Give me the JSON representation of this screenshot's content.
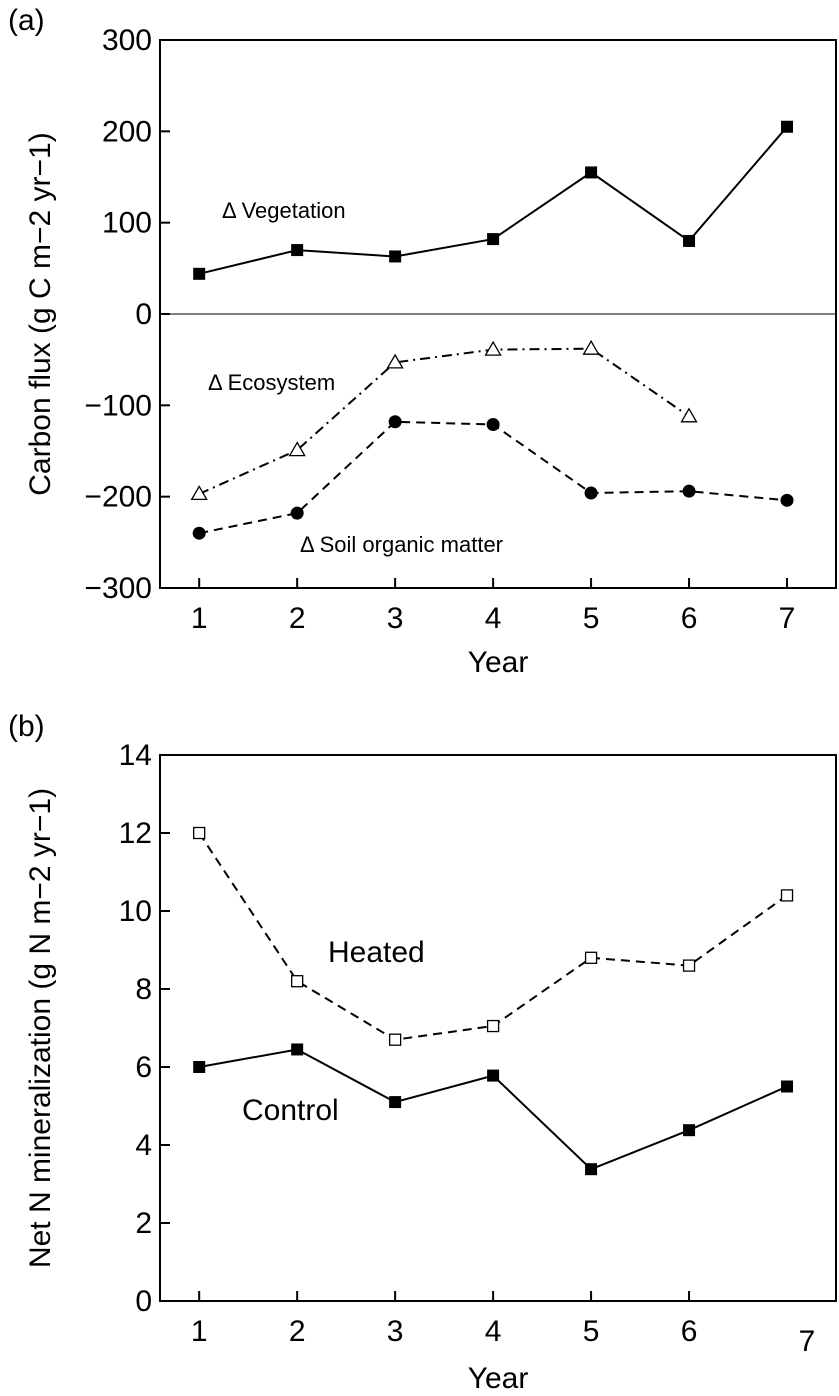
{
  "chart_data": [
    {
      "type": "line",
      "panel_label": "(a)",
      "xlabel": "Year",
      "ylabel": "Carbon flux (g C m−2 yr−1)",
      "x_ticks": [
        "1",
        "2",
        "3",
        "4",
        "5",
        "6",
        "7"
      ],
      "y_ticks": [
        "300",
        "200",
        "100",
        "0",
        "−100",
        "−200",
        "−300"
      ],
      "xlim": [
        0.6,
        7.5
      ],
      "ylim": [
        -300,
        300
      ],
      "zero_line": true,
      "series": [
        {
          "label": "Δ Vegetation",
          "marker": "filled-square",
          "line": "solid",
          "x": [
            1,
            2,
            3,
            4,
            5,
            6,
            7
          ],
          "y": [
            44,
            70,
            63,
            82,
            155,
            80,
            205
          ]
        },
        {
          "label": "Δ Ecosystem",
          "marker": "open-triangle",
          "line": "dash-dot",
          "x": [
            1,
            2,
            3,
            4,
            5,
            6
          ],
          "y": [
            -197,
            -149,
            -53,
            -39,
            -38,
            -112
          ]
        },
        {
          "label": "Δ Soil organic matter",
          "marker": "filled-circle",
          "line": "dashed",
          "x": [
            1,
            2,
            3,
            4,
            5,
            6,
            7
          ],
          "y": [
            -240,
            -218,
            -118,
            -121,
            -196,
            -194,
            -204
          ]
        }
      ]
    },
    {
      "type": "line",
      "panel_label": "(b)",
      "xlabel": "Year",
      "ylabel": "Net N mineralization (g N m−2 yr−1)",
      "x_ticks": [
        "1",
        "2",
        "3",
        "4",
        "5",
        "6",
        "7"
      ],
      "y_ticks": [
        "14",
        "12",
        "10",
        "8",
        "6",
        "4",
        "2",
        "0"
      ],
      "xlim": [
        0.6,
        7.5
      ],
      "ylim": [
        0,
        14
      ],
      "series": [
        {
          "label": "Heated",
          "marker": "open-square",
          "line": "dashed",
          "x": [
            1,
            2,
            3,
            4,
            5,
            6,
            7
          ],
          "y": [
            12.0,
            8.2,
            6.7,
            7.05,
            8.8,
            8.6,
            10.4
          ]
        },
        {
          "label": "Control",
          "marker": "filled-square",
          "line": "solid",
          "x": [
            1,
            2,
            3,
            4,
            5,
            6,
            7
          ],
          "y": [
            6.0,
            6.45,
            5.1,
            5.78,
            3.38,
            4.38,
            5.5
          ]
        }
      ]
    }
  ]
}
